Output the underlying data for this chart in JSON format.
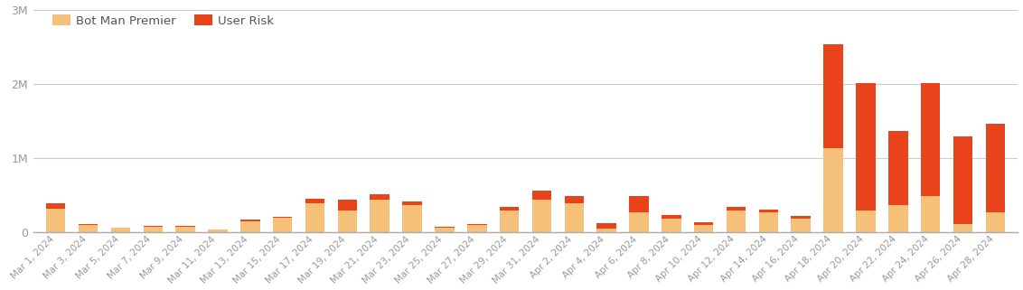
{
  "dates": [
    "Mar 1, 2024",
    "Mar 3, 2024",
    "Mar 5, 2024",
    "Mar 7, 2024",
    "Mar 9, 2024",
    "Mar 11, 2024",
    "Mar 13, 2024",
    "Mar 15, 2024",
    "Mar 17, 2024",
    "Mar 19, 2024",
    "Mar 21, 2024",
    "Mar 23, 2024",
    "Mar 25, 2024",
    "Mar 27, 2024",
    "Mar 29, 2024",
    "Mar 31, 2024",
    "Apr 2, 2024",
    "Apr 4, 2024",
    "Apr 6, 2024",
    "Apr 8, 2024",
    "Apr 10, 2024",
    "Apr 12, 2024",
    "Apr 14, 2024",
    "Apr 16, 2024",
    "Apr 18, 2024",
    "Apr 20, 2024",
    "Apr 22, 2024",
    "Apr 24, 2024",
    "Apr 26, 2024",
    "Apr 28, 2024"
  ],
  "bot_man_premier": [
    310000,
    100000,
    55000,
    70000,
    70000,
    30000,
    145000,
    190000,
    390000,
    290000,
    440000,
    360000,
    60000,
    90000,
    290000,
    440000,
    390000,
    50000,
    260000,
    175000,
    95000,
    285000,
    270000,
    175000,
    1130000,
    290000,
    365000,
    490000,
    110000,
    260000
  ],
  "user_risk": [
    80000,
    5000,
    5000,
    10000,
    10000,
    5000,
    20000,
    10000,
    60000,
    150000,
    70000,
    55000,
    5000,
    15000,
    50000,
    120000,
    100000,
    70000,
    230000,
    55000,
    30000,
    55000,
    35000,
    40000,
    1400000,
    1720000,
    1000000,
    1520000,
    1180000,
    1200000
  ],
  "bot_color": "#F5C07A",
  "user_color": "#E8431A",
  "bg_color": "#FFFFFF",
  "grid_color": "#CCCCCC",
  "tick_color": "#999999",
  "legend_bot_label": "Bot Man Premier",
  "legend_user_label": "User Risk",
  "ylim": [
    0,
    3000000
  ],
  "yticks": [
    0,
    1000000,
    2000000,
    3000000
  ],
  "ytick_labels": [
    "0",
    "1M",
    "2M",
    "3M"
  ]
}
